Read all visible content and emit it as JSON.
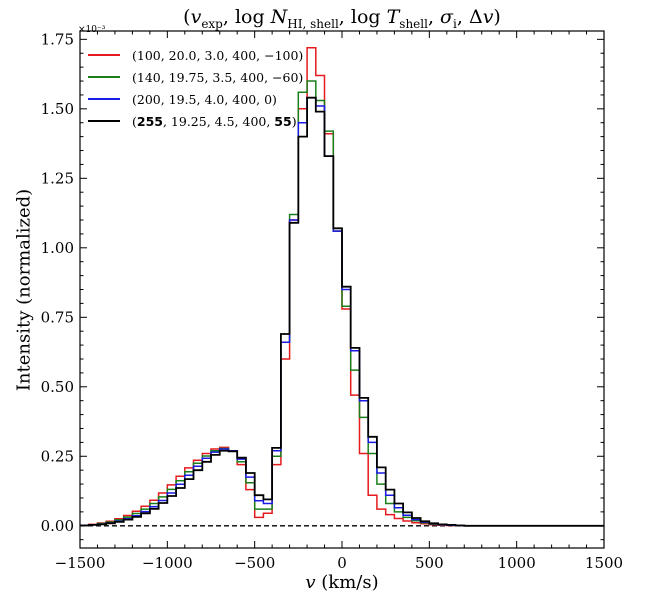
{
  "chart_data": {
    "type": "line",
    "title": "(v_exp, log N_HI, shell, log T_shell, σ_i, Δv)",
    "xlabel": "v (km/s)",
    "ylabel": "Intensity (normalized)",
    "y_multiplier": "×10⁻³",
    "xlim": [
      -1500,
      1500
    ],
    "ylim": [
      -0.08,
      1.78
    ],
    "x_ticks": [
      -1500,
      -1000,
      -500,
      0,
      500,
      1000,
      1500
    ],
    "x_tick_labels": [
      "−1500",
      "−1000",
      "−500",
      "0",
      "500",
      "1000",
      "1500"
    ],
    "y_ticks": [
      0.0,
      0.25,
      0.5,
      0.75,
      1.0,
      1.25,
      1.5,
      1.75
    ],
    "y_tick_labels": [
      "0.00",
      "0.25",
      "0.50",
      "0.75",
      "1.00",
      "1.25",
      "1.50",
      "1.75"
    ],
    "zero_line": {
      "y": 0,
      "style": "dashed"
    },
    "bin_width": 50,
    "bin_edges_start": -1500,
    "legend_placement": "top-left",
    "series": [
      {
        "name": "(100, 20.0, 3.0, 400, −100)",
        "color": "#e41a1c",
        "values": [
          0.002,
          0.005,
          0.01,
          0.016,
          0.025,
          0.037,
          0.052,
          0.07,
          0.092,
          0.118,
          0.147,
          0.178,
          0.208,
          0.236,
          0.26,
          0.276,
          0.282,
          0.27,
          0.22,
          0.13,
          0.03,
          0.045,
          0.22,
          0.6,
          1.1,
          1.5,
          1.72,
          1.62,
          1.41,
          1.06,
          0.78,
          0.47,
          0.26,
          0.11,
          0.06,
          0.04,
          0.026,
          0.017,
          0.011,
          0.007,
          0.004,
          0.002,
          0.001,
          0.001,
          0.0,
          0.0,
          0.0,
          0.0,
          0.0,
          0.0,
          0.0,
          0.0,
          0.0,
          0.0,
          0.0,
          0.0,
          0.0,
          0.0,
          0.0,
          0.0
        ]
      },
      {
        "name": "(140, 19.75, 3.5, 400, −60)",
        "color": "#1a7f1a",
        "values": [
          0.002,
          0.004,
          0.008,
          0.013,
          0.021,
          0.031,
          0.044,
          0.06,
          0.08,
          0.104,
          0.131,
          0.162,
          0.194,
          0.225,
          0.251,
          0.27,
          0.278,
          0.268,
          0.23,
          0.155,
          0.06,
          0.06,
          0.25,
          0.66,
          1.12,
          1.56,
          1.6,
          1.53,
          1.42,
          1.06,
          0.79,
          0.56,
          0.39,
          0.26,
          0.15,
          0.08,
          0.05,
          0.03,
          0.018,
          0.011,
          0.006,
          0.003,
          0.002,
          0.001,
          0.0,
          0.0,
          0.0,
          0.0,
          0.0,
          0.0,
          0.0,
          0.0,
          0.0,
          0.0,
          0.0,
          0.0,
          0.0,
          0.0,
          0.0,
          0.0
        ]
      },
      {
        "name": "(200, 19.5, 4.0, 400, 0)",
        "color": "#1a1ae6",
        "values": [
          0.002,
          0.003,
          0.006,
          0.01,
          0.016,
          0.025,
          0.036,
          0.051,
          0.069,
          0.091,
          0.118,
          0.149,
          0.182,
          0.214,
          0.243,
          0.265,
          0.276,
          0.27,
          0.24,
          0.175,
          0.09,
          0.08,
          0.27,
          0.66,
          1.1,
          1.45,
          1.54,
          1.51,
          1.33,
          1.06,
          0.85,
          0.63,
          0.45,
          0.3,
          0.19,
          0.11,
          0.065,
          0.038,
          0.022,
          0.013,
          0.007,
          0.004,
          0.002,
          0.001,
          0.0,
          0.0,
          0.0,
          0.0,
          0.0,
          0.0,
          0.0,
          0.0,
          0.0,
          0.0,
          0.0,
          0.0,
          0.0,
          0.0,
          0.0,
          0.0
        ]
      },
      {
        "name": "(255, 19.25, 4.5, 400, 55)",
        "name_bold_parts": [
          "255",
          "55"
        ],
        "color": "#000000",
        "values": [
          0.001,
          0.003,
          0.005,
          0.009,
          0.014,
          0.022,
          0.032,
          0.045,
          0.061,
          0.082,
          0.107,
          0.136,
          0.168,
          0.2,
          0.23,
          0.255,
          0.27,
          0.268,
          0.245,
          0.19,
          0.11,
          0.095,
          0.28,
          0.69,
          1.09,
          1.4,
          1.54,
          1.49,
          1.33,
          1.07,
          0.86,
          0.64,
          0.46,
          0.32,
          0.21,
          0.13,
          0.08,
          0.048,
          0.028,
          0.016,
          0.009,
          0.005,
          0.003,
          0.001,
          0.0,
          0.0,
          0.0,
          0.0,
          0.0,
          0.0,
          0.0,
          0.0,
          0.0,
          0.0,
          0.0,
          0.0,
          0.0,
          0.0,
          0.0,
          0.0
        ]
      }
    ]
  }
}
